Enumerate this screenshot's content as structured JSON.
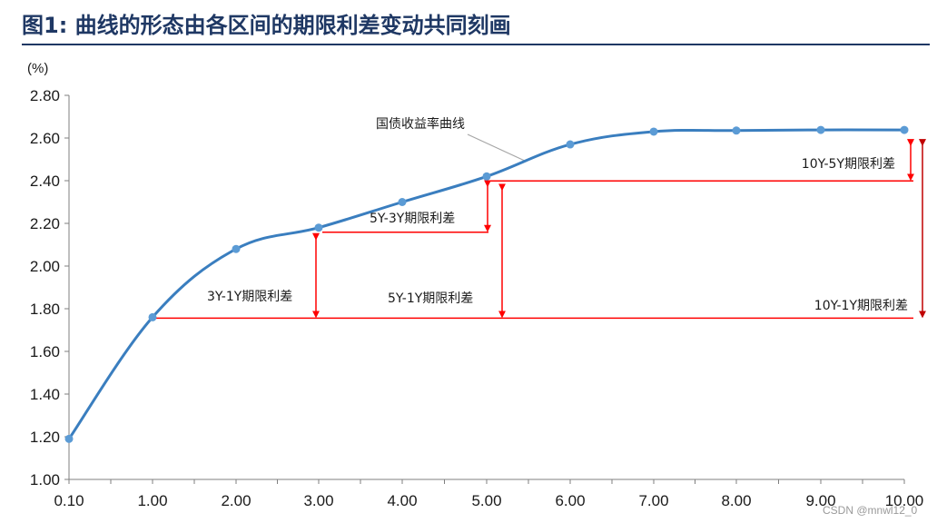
{
  "header": {
    "title": "图1:  曲线的形态由各区间的期限利差变动共同刻画"
  },
  "chart_data": {
    "type": "line",
    "unit": "(%)",
    "x_tick_labels": [
      "0.10",
      "1.00",
      "2.00",
      "3.00",
      "4.00",
      "5.00",
      "6.00",
      "7.00",
      "8.00",
      "9.00",
      "10.00"
    ],
    "y_tick_labels": [
      "1.00",
      "1.20",
      "1.40",
      "1.60",
      "1.80",
      "2.00",
      "2.20",
      "2.40",
      "2.60",
      "2.80"
    ],
    "ylim": [
      1.0,
      2.8
    ],
    "series": [
      {
        "name": "国债收益率曲线",
        "color": "#3a7ebf",
        "marker_color": "#5b9bd5",
        "x": [
          0.1,
          1,
          2,
          3,
          4,
          5,
          6,
          7,
          8,
          9,
          10
        ],
        "y": [
          1.19,
          1.76,
          2.08,
          2.18,
          2.3,
          2.42,
          2.57,
          2.63,
          2.635,
          2.638,
          2.638
        ]
      }
    ],
    "annotations": {
      "curve_label": "国债收益率曲线",
      "spreads": [
        {
          "label": "3Y-1Y期限利差",
          "from_tenor": "1Y",
          "to_tenor": "3Y"
        },
        {
          "label": "5Y-3Y期限利差",
          "from_tenor": "3Y",
          "to_tenor": "5Y"
        },
        {
          "label": "5Y-1Y期限利差",
          "from_tenor": "1Y",
          "to_tenor": "5Y"
        },
        {
          "label": "10Y-5Y期限利差",
          "from_tenor": "5Y",
          "to_tenor": "10Y"
        },
        {
          "label": "10Y-1Y期限利差",
          "from_tenor": "1Y",
          "to_tenor": "10Y"
        }
      ],
      "spread_color": "#ff0000",
      "spread_dark_color": "#c00000"
    }
  },
  "watermark": "CSDN @mnwl12_0"
}
